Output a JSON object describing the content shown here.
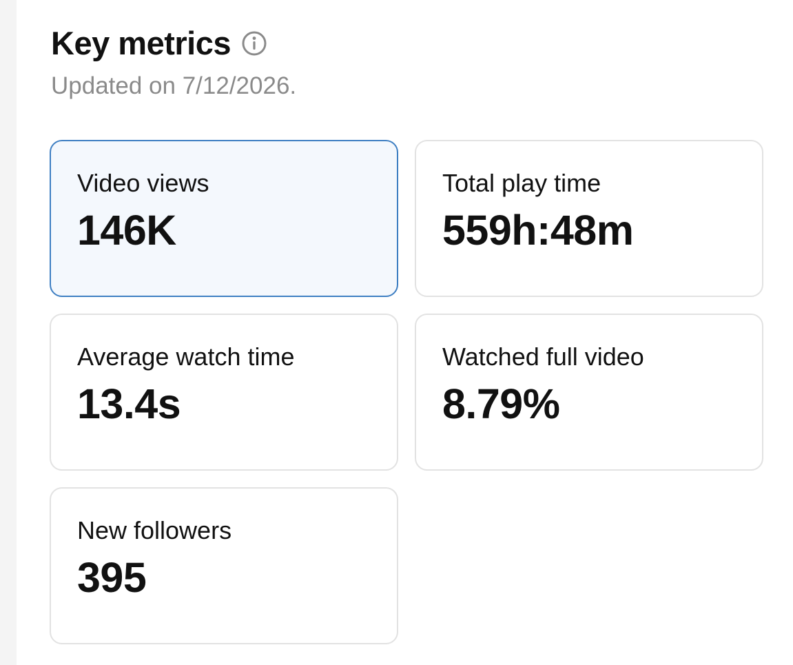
{
  "header": {
    "title": "Key metrics",
    "info_icon": "info-circle-icon",
    "updated_text": "Updated on 7/12/2026."
  },
  "metrics": [
    {
      "label": "Video views",
      "value": "146K",
      "selected": true
    },
    {
      "label": "Total play time",
      "value": "559h:48m",
      "selected": false
    },
    {
      "label": "Average watch time",
      "value": "13.4s",
      "selected": false
    },
    {
      "label": "Watched full video",
      "value": "8.79%",
      "selected": false
    },
    {
      "label": "New followers",
      "value": "395",
      "selected": false
    }
  ],
  "colors": {
    "selected_border": "#3d7ec2",
    "selected_background": "#f4f8fd",
    "card_border": "#e2e2e2",
    "subtitle": "#8a8a8a"
  }
}
